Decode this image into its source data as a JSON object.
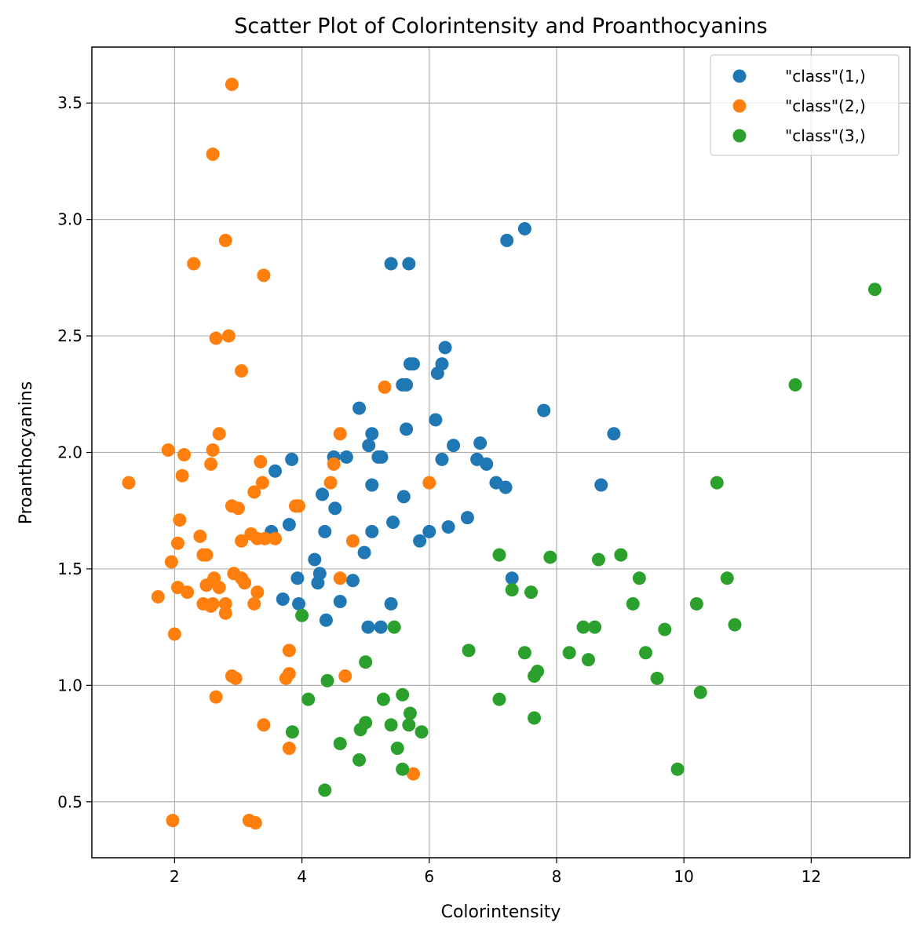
{
  "chart_data": {
    "type": "scatter",
    "title": "Scatter Plot of Colorintensity and Proanthocyanins",
    "xlabel": "Colorintensity",
    "ylabel": "Proanthocyanins",
    "xlim": [
      0.7,
      13.55
    ],
    "ylim": [
      0.26,
      3.74
    ],
    "xticks": [
      2,
      4,
      6,
      8,
      10,
      12
    ],
    "yticks": [
      0.5,
      1.0,
      1.5,
      2.0,
      2.5,
      3.0,
      3.5
    ],
    "xtick_labels": [
      "2",
      "4",
      "6",
      "8",
      "10",
      "12"
    ],
    "ytick_labels": [
      "0.5",
      "1.0",
      "1.5",
      "2.0",
      "2.5",
      "3.0",
      "3.5"
    ],
    "grid": true,
    "legend_position": "top-right",
    "series": [
      {
        "name": "\"class\"(1,)",
        "color": "#1f77b4",
        "points": [
          [
            7.5,
            2.96
          ],
          [
            7.22,
            2.91
          ],
          [
            5.4,
            2.81
          ],
          [
            5.68,
            2.81
          ],
          [
            6.25,
            2.45
          ],
          [
            6.2,
            2.38
          ],
          [
            5.7,
            2.38
          ],
          [
            5.75,
            2.38
          ],
          [
            6.13,
            2.34
          ],
          [
            5.58,
            2.29
          ],
          [
            5.64,
            2.29
          ],
          [
            4.9,
            2.19
          ],
          [
            7.8,
            2.18
          ],
          [
            6.1,
            2.14
          ],
          [
            5.64,
            2.1
          ],
          [
            8.9,
            2.08
          ],
          [
            5.1,
            2.08
          ],
          [
            6.8,
            2.04
          ],
          [
            5.05,
            2.03
          ],
          [
            6.38,
            2.03
          ],
          [
            4.5,
            1.98
          ],
          [
            4.7,
            1.98
          ],
          [
            5.2,
            1.98
          ],
          [
            5.25,
            1.98
          ],
          [
            3.84,
            1.97
          ],
          [
            6.2,
            1.97
          ],
          [
            6.75,
            1.97
          ],
          [
            6.9,
            1.95
          ],
          [
            3.58,
            1.92
          ],
          [
            7.05,
            1.87
          ],
          [
            5.1,
            1.86
          ],
          [
            8.7,
            1.86
          ],
          [
            7.2,
            1.85
          ],
          [
            4.32,
            1.82
          ],
          [
            5.6,
            1.81
          ],
          [
            4.52,
            1.76
          ],
          [
            6.6,
            1.72
          ],
          [
            5.43,
            1.7
          ],
          [
            3.8,
            1.69
          ],
          [
            6.3,
            1.68
          ],
          [
            3.52,
            1.66
          ],
          [
            4.36,
            1.66
          ],
          [
            5.1,
            1.66
          ],
          [
            6.0,
            1.66
          ],
          [
            5.85,
            1.62
          ],
          [
            4.98,
            1.57
          ],
          [
            4.2,
            1.54
          ],
          [
            4.28,
            1.48
          ],
          [
            3.93,
            1.46
          ],
          [
            7.3,
            1.46
          ],
          [
            4.8,
            1.45
          ],
          [
            4.25,
            1.44
          ],
          [
            3.7,
            1.37
          ],
          [
            4.6,
            1.36
          ],
          [
            3.95,
            1.35
          ],
          [
            5.4,
            1.35
          ],
          [
            4.38,
            1.28
          ],
          [
            5.04,
            1.25
          ],
          [
            5.24,
            1.25
          ]
        ]
      },
      {
        "name": "\"class\"(2,)",
        "color": "#ff7f0e",
        "points": [
          [
            2.9,
            3.58
          ],
          [
            2.6,
            3.28
          ],
          [
            2.8,
            2.91
          ],
          [
            2.3,
            2.81
          ],
          [
            3.4,
            2.76
          ],
          [
            2.85,
            2.5
          ],
          [
            2.65,
            2.49
          ],
          [
            3.05,
            2.35
          ],
          [
            5.3,
            2.28
          ],
          [
            2.7,
            2.08
          ],
          [
            4.6,
            2.08
          ],
          [
            1.9,
            2.01
          ],
          [
            2.6,
            2.01
          ],
          [
            2.15,
            1.99
          ],
          [
            3.35,
            1.96
          ],
          [
            2.57,
            1.95
          ],
          [
            4.5,
            1.95
          ],
          [
            2.12,
            1.9
          ],
          [
            1.28,
            1.87
          ],
          [
            3.38,
            1.87
          ],
          [
            4.45,
            1.87
          ],
          [
            6.0,
            1.87
          ],
          [
            3.25,
            1.83
          ],
          [
            2.9,
            1.77
          ],
          [
            3.9,
            1.77
          ],
          [
            3.95,
            1.77
          ],
          [
            3.0,
            1.76
          ],
          [
            2.08,
            1.71
          ],
          [
            3.2,
            1.65
          ],
          [
            2.4,
            1.64
          ],
          [
            3.3,
            1.63
          ],
          [
            3.42,
            1.63
          ],
          [
            3.58,
            1.63
          ],
          [
            2.05,
            1.61
          ],
          [
            3.05,
            1.62
          ],
          [
            4.8,
            1.62
          ],
          [
            2.45,
            1.56
          ],
          [
            2.5,
            1.56
          ],
          [
            1.95,
            1.53
          ],
          [
            2.93,
            1.48
          ],
          [
            3.05,
            1.46
          ],
          [
            3.1,
            1.44
          ],
          [
            2.62,
            1.46
          ],
          [
            4.6,
            1.46
          ],
          [
            2.5,
            1.43
          ],
          [
            2.7,
            1.42
          ],
          [
            2.05,
            1.42
          ],
          [
            2.2,
            1.4
          ],
          [
            3.3,
            1.4
          ],
          [
            1.74,
            1.38
          ],
          [
            2.45,
            1.35
          ],
          [
            2.6,
            1.35
          ],
          [
            2.8,
            1.35
          ],
          [
            2.57,
            1.34
          ],
          [
            3.25,
            1.35
          ],
          [
            2.8,
            1.31
          ],
          [
            2.0,
            1.22
          ],
          [
            3.8,
            1.15
          ],
          [
            2.9,
            1.04
          ],
          [
            2.96,
            1.03
          ],
          [
            3.75,
            1.03
          ],
          [
            3.8,
            1.05
          ],
          [
            4.68,
            1.04
          ],
          [
            2.65,
            0.95
          ],
          [
            3.4,
            0.83
          ],
          [
            3.8,
            0.73
          ],
          [
            5.75,
            0.62
          ],
          [
            1.97,
            0.42
          ],
          [
            3.17,
            0.42
          ],
          [
            3.27,
            0.41
          ]
        ]
      },
      {
        "name": "\"class\"(3,)",
        "color": "#2ca02c",
        "points": [
          [
            13.0,
            2.7
          ],
          [
            11.75,
            2.29
          ],
          [
            10.52,
            1.87
          ],
          [
            7.1,
            1.56
          ],
          [
            7.9,
            1.55
          ],
          [
            9.01,
            1.56
          ],
          [
            8.66,
            1.54
          ],
          [
            9.3,
            1.46
          ],
          [
            10.68,
            1.46
          ],
          [
            7.3,
            1.41
          ],
          [
            7.6,
            1.4
          ],
          [
            9.2,
            1.35
          ],
          [
            10.2,
            1.35
          ],
          [
            10.8,
            1.26
          ],
          [
            5.45,
            1.25
          ],
          [
            8.42,
            1.25
          ],
          [
            8.6,
            1.25
          ],
          [
            9.7,
            1.24
          ],
          [
            6.62,
            1.15
          ],
          [
            7.5,
            1.14
          ],
          [
            8.2,
            1.14
          ],
          [
            9.4,
            1.14
          ],
          [
            8.5,
            1.11
          ],
          [
            5.0,
            1.1
          ],
          [
            7.7,
            1.06
          ],
          [
            7.65,
            1.04
          ],
          [
            9.58,
            1.03
          ],
          [
            4.4,
            1.02
          ],
          [
            10.26,
            0.97
          ],
          [
            5.58,
            0.96
          ],
          [
            4.1,
            0.94
          ],
          [
            5.28,
            0.94
          ],
          [
            7.1,
            0.94
          ],
          [
            5.7,
            0.88
          ],
          [
            7.65,
            0.86
          ],
          [
            5.0,
            0.84
          ],
          [
            5.4,
            0.83
          ],
          [
            5.68,
            0.83
          ],
          [
            4.92,
            0.81
          ],
          [
            3.85,
            0.8
          ],
          [
            5.88,
            0.8
          ],
          [
            4.6,
            0.75
          ],
          [
            5.5,
            0.73
          ],
          [
            4.9,
            0.68
          ],
          [
            5.58,
            0.64
          ],
          [
            9.9,
            0.64
          ],
          [
            4.36,
            0.55
          ],
          [
            4.0,
            1.3
          ]
        ]
      }
    ]
  }
}
